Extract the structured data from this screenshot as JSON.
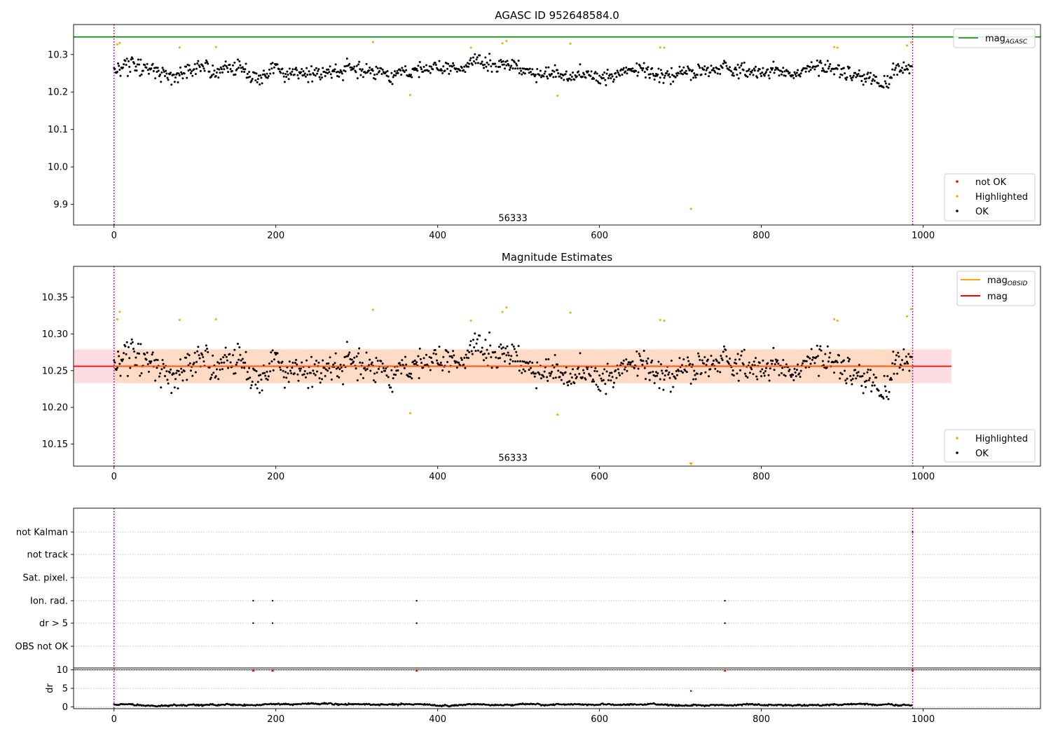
{
  "chart_data": [
    {
      "type": "scatter",
      "title": "AGASC ID 952648584.0",
      "xlim": [
        -50,
        1145
      ],
      "ylim": [
        9.845,
        10.38
      ],
      "xticks": [
        0,
        200,
        400,
        600,
        800,
        1000
      ],
      "yticks": [
        9.9,
        10.0,
        10.1,
        10.2,
        10.3
      ],
      "hlines": [
        {
          "name": "mag_AGASC",
          "y": 10.347,
          "color": "#008000"
        }
      ],
      "vlines": [
        {
          "x": 0,
          "color": "#800080",
          "style": "dotted"
        },
        {
          "x": 987,
          "color": "#800080",
          "style": "dotted"
        }
      ],
      "annotation": {
        "text": "56333",
        "x": 493,
        "y": 9.855
      },
      "legend_lines": [
        {
          "label": "mag",
          "sub": "AGASC",
          "color": "#008000"
        }
      ],
      "legend_points": [
        {
          "label": "not OK",
          "color": "#ff0000"
        },
        {
          "label": "Highlighted",
          "color": "#ffa500"
        },
        {
          "label": "OK",
          "color": "#000000"
        }
      ],
      "point_series": {
        "n": 987,
        "base": 10.256,
        "spread": 0.024
      },
      "highlighted": [
        [
          4,
          10.327
        ],
        [
          7,
          10.331
        ],
        [
          81,
          10.319
        ],
        [
          126,
          10.32
        ],
        [
          320,
          10.333
        ],
        [
          366,
          10.192
        ],
        [
          441,
          10.318
        ],
        [
          480,
          10.33
        ],
        [
          485,
          10.336
        ],
        [
          548,
          10.19
        ],
        [
          564,
          10.329
        ],
        [
          675,
          10.319
        ],
        [
          680,
          10.318
        ],
        [
          713,
          9.888
        ],
        [
          890,
          10.32
        ],
        [
          894,
          10.318
        ],
        [
          980,
          10.324
        ],
        [
          985,
          10.332
        ]
      ],
      "not_ok": []
    },
    {
      "type": "scatter",
      "title": "Magnitude Estimates",
      "xlim": [
        -50,
        1145
      ],
      "ylim": [
        10.12,
        10.392
      ],
      "xticks": [
        0,
        200,
        400,
        600,
        800,
        1000
      ],
      "yticks": [
        10.15,
        10.2,
        10.25,
        10.3,
        10.35
      ],
      "hlines": [
        {
          "name": "mag",
          "y": 10.256,
          "color": "#ff0000",
          "x0": -50,
          "x1": 1035
        }
      ],
      "band": {
        "y0": 10.233,
        "y1": 10.279,
        "x0": -50,
        "x1": 1035,
        "color": "#ffc0cb"
      },
      "band_inner": {
        "y0": 10.233,
        "y1": 10.279,
        "x0": 0,
        "x1": 987,
        "color": "#ffdab9"
      },
      "vlines": [
        {
          "x": 0,
          "color": "#800080",
          "style": "dotted"
        },
        {
          "x": 987,
          "color": "#800080",
          "style": "dotted"
        }
      ],
      "annotation": {
        "text": "56333",
        "x": 493,
        "y": 10.127
      },
      "legend_lines": [
        {
          "label": "mag",
          "sub": "OBSID",
          "color": "#ffa500"
        },
        {
          "label": "mag",
          "sub": "",
          "color": "#ff0000"
        }
      ],
      "legend_points": [
        {
          "label": "Highlighted",
          "color": "#ffa500"
        },
        {
          "label": "OK",
          "color": "#000000"
        }
      ],
      "point_series": {
        "n": 987,
        "base": 10.256,
        "spread": 0.024
      },
      "highlighted": [
        [
          4,
          10.32
        ],
        [
          7,
          10.33
        ],
        [
          81,
          10.319
        ],
        [
          126,
          10.32
        ],
        [
          320,
          10.333
        ],
        [
          366,
          10.192
        ],
        [
          441,
          10.318
        ],
        [
          480,
          10.33
        ],
        [
          485,
          10.336
        ],
        [
          548,
          10.19
        ],
        [
          564,
          10.329
        ],
        [
          675,
          10.319
        ],
        [
          680,
          10.318
        ],
        [
          890,
          10.32
        ],
        [
          894,
          10.318
        ],
        [
          980,
          10.324
        ],
        [
          985,
          10.334
        ]
      ],
      "off_scale_marker": {
        "x": 713,
        "color": "#ffa500"
      }
    },
    {
      "type": "scatter",
      "title": "",
      "xlim": [
        -50,
        1145
      ],
      "categories": [
        "not Kalman",
        "not track",
        "Sat. pixel.",
        "Ion. rad.",
        "dr > 5",
        "OBS not OK"
      ],
      "flags": {
        "Ion. rad.": [
          172,
          196,
          374,
          755
        ],
        "dr > 5": [
          172,
          196,
          374,
          755
        ],
        "not Kalman": [
          987
        ]
      },
      "vlines": [
        {
          "x": 0,
          "color": "#800080",
          "style": "dotted"
        },
        {
          "x": 987,
          "color": "#800080",
          "style": "dotted"
        }
      ]
    },
    {
      "type": "scatter",
      "title": "",
      "xlabel": "",
      "ylabel": "dr",
      "xlim": [
        -50,
        1145
      ],
      "ylim": [
        -0.5,
        10.5
      ],
      "xticks": [
        0,
        200,
        400,
        600,
        800,
        1000
      ],
      "yticks": [
        0,
        5,
        10
      ],
      "hlines": [
        {
          "y": 10,
          "color": "#000000"
        }
      ],
      "vlines": [
        {
          "x": 0,
          "color": "#800080",
          "style": "dotted"
        },
        {
          "x": 987,
          "color": "#800080",
          "style": "dotted"
        }
      ],
      "clipped_red": [
        172,
        196,
        374,
        755,
        987
      ],
      "red_points": [
        [
          713,
          4.3
        ]
      ],
      "point_series": {
        "n": 987,
        "base": 0.6,
        "spread": 0.4
      }
    }
  ]
}
